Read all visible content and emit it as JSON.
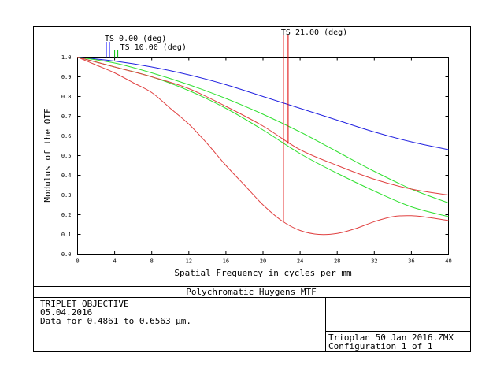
{
  "frame": {
    "caption": "Polychromatic Huygens MTF",
    "lens_title": "TRIPLET OBJECTIVE",
    "date": "05.04.2016",
    "data_range": "Data for 0.4861 to 0.6563 µm.",
    "file_name": "Trioplan 50 Jan 2016.ZMX",
    "configuration": "Configuration 1 of 1"
  },
  "chart_data": {
    "type": "line",
    "title": "",
    "xlabel": "Spatial Frequency in cycles per mm",
    "ylabel": "Modulus of the OTF",
    "xlim": [
      0,
      40
    ],
    "ylim": [
      0,
      1
    ],
    "x_ticks": [
      "0",
      "4",
      "8",
      "12",
      "16",
      "20",
      "24",
      "28",
      "32",
      "36",
      "40"
    ],
    "y_ticks": [
      "0.0",
      "0.1",
      "0.2",
      "0.3",
      "0.4",
      "0.5",
      "0.6",
      "0.7",
      "0.8",
      "0.9",
      "1.0"
    ],
    "grid": false,
    "field_labels": [
      {
        "text": "TS 0.00 (deg)",
        "freq": 3.1,
        "color": "#0000ff"
      },
      {
        "text": "TS 10.00 (deg)",
        "freq": 4.0,
        "color": "#00c000"
      },
      {
        "text": "TS 21.00 (deg)",
        "freq": 22.2,
        "color": "#e00000"
      }
    ],
    "series": [
      {
        "color": "#2020e0",
        "x": [
          0,
          4,
          8,
          12,
          16,
          20,
          24,
          28,
          32,
          36,
          40
        ],
        "y": [
          1.0,
          0.98,
          0.95,
          0.91,
          0.86,
          0.8,
          0.74,
          0.68,
          0.62,
          0.57,
          0.53
        ]
      },
      {
        "color": "#30e030",
        "x": [
          0,
          4,
          8,
          12,
          16,
          20,
          24,
          28,
          32,
          36,
          40
        ],
        "y": [
          1.0,
          0.97,
          0.92,
          0.86,
          0.79,
          0.71,
          0.62,
          0.52,
          0.42,
          0.33,
          0.26
        ]
      },
      {
        "color": "#30e030",
        "x": [
          0,
          4,
          8,
          12,
          16,
          20,
          24,
          28,
          32,
          36,
          40
        ],
        "y": [
          1.0,
          0.95,
          0.9,
          0.83,
          0.74,
          0.63,
          0.51,
          0.41,
          0.32,
          0.24,
          0.19
        ]
      },
      {
        "color": "#e04040",
        "x": [
          0,
          4,
          8,
          12,
          16,
          20,
          24,
          28,
          32,
          36,
          40
        ],
        "y": [
          1.0,
          0.95,
          0.9,
          0.84,
          0.75,
          0.65,
          0.53,
          0.45,
          0.38,
          0.33,
          0.3
        ]
      },
      {
        "color": "#e04040",
        "x": [
          0,
          2,
          4,
          6,
          8,
          10,
          12,
          14,
          16,
          18,
          20,
          22,
          24,
          26,
          28,
          30,
          32,
          34,
          36,
          38,
          40
        ],
        "y": [
          1.0,
          0.96,
          0.92,
          0.87,
          0.82,
          0.74,
          0.66,
          0.56,
          0.45,
          0.35,
          0.25,
          0.17,
          0.12,
          0.1,
          0.105,
          0.13,
          0.165,
          0.19,
          0.195,
          0.185,
          0.17
        ]
      }
    ]
  }
}
